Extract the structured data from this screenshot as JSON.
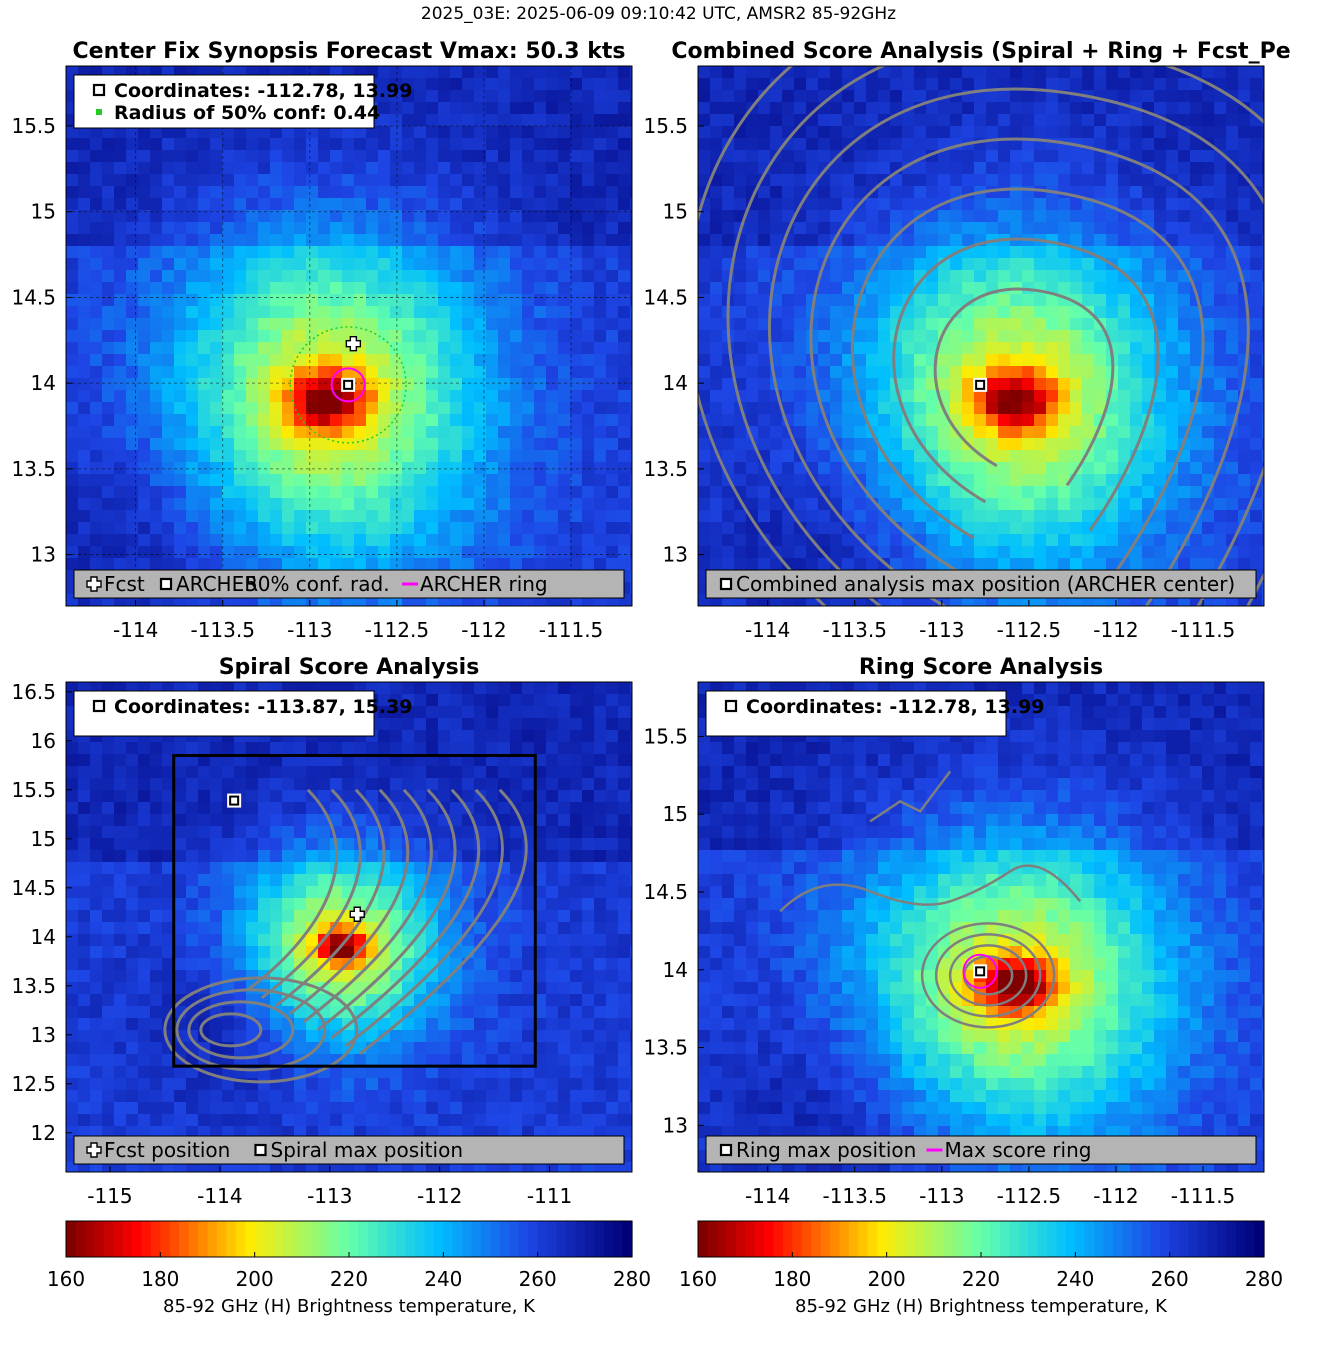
{
  "suptitle": "2025_03E: 2025-06-09 09:10:42 UTC, AMSR2 85-92GHz",
  "colors": {
    "cloud_cold": "#7a0000",
    "background_warm": "#1f36c6",
    "contour": "#7f7f7f",
    "ring": "#ff00ff",
    "conf_circle": "#22cc22",
    "box": "#000000",
    "legend_bg": "#b4b4b4"
  },
  "chart_data": [
    {
      "id": "panel-center-fix",
      "type": "heatmap",
      "title": "Center Fix Synopsis     Forecast Vmax: 50.3 kts",
      "xlim": [
        -114.4,
        -111.15
      ],
      "ylim": [
        12.7,
        15.85
      ],
      "xticks": [
        -114,
        -113.5,
        -113,
        -112.5,
        -112,
        -111.5
      ],
      "yticks": [
        13,
        13.5,
        14,
        14.5,
        15,
        15.5
      ],
      "grid": true,
      "storm": {
        "cx": -112.9,
        "cy": 13.9
      },
      "info_lines": [
        "Coordinates: -112.78, 13.99",
        "Radius of 50% conf: 0.44"
      ],
      "legend": [
        "Fcst",
        "ARCHER",
        "50% conf. rad.",
        "ARCHER ring"
      ],
      "fcst": {
        "x": -112.75,
        "y": 14.23
      },
      "archer": {
        "x": -112.78,
        "y": 13.99
      },
      "ring_radius": 0.1,
      "conf_radius": 0.44
    },
    {
      "id": "panel-combined",
      "type": "heatmap",
      "title": "Combined Score Analysis (Spiral + Ring + Fcst_Pe",
      "xlim": [
        -114.4,
        -111.15
      ],
      "ylim": [
        12.7,
        15.85
      ],
      "xticks": [
        -114,
        -113.5,
        -113,
        -112.5,
        -112,
        -111.5
      ],
      "yticks": [
        13,
        13.5,
        14,
        14.5,
        15,
        15.5
      ],
      "storm": {
        "cx": -112.58,
        "cy": 13.9
      },
      "legend": [
        "Combined analysis max position (ARCHER center)"
      ],
      "archer": {
        "x": -112.78,
        "y": 13.99
      }
    },
    {
      "id": "panel-spiral",
      "type": "heatmap",
      "title": "Spiral Score Analysis",
      "xlim": [
        -115.4,
        -110.25
      ],
      "ylim": [
        11.6,
        16.6
      ],
      "xticks": [
        -115,
        -114,
        -113,
        -112,
        -111
      ],
      "yticks": [
        12,
        12.5,
        13,
        13.5,
        14,
        14.5,
        15,
        15.5,
        16,
        16.5
      ],
      "storm": {
        "cx": -112.9,
        "cy": 13.9
      },
      "info_lines": [
        "Coordinates: -113.87, 15.39"
      ],
      "legend": [
        "Fcst position",
        "Spiral max position"
      ],
      "fcst": {
        "x": -112.75,
        "y": 14.23
      },
      "spiral_max": {
        "x": -113.87,
        "y": 15.39
      },
      "box": {
        "x0": -114.42,
        "x1": -111.13,
        "y0": 12.68,
        "y1": 15.85
      }
    },
    {
      "id": "panel-ring",
      "type": "heatmap",
      "title": "Ring Score Analysis",
      "xlim": [
        -114.4,
        -111.15
      ],
      "ylim": [
        12.7,
        15.85
      ],
      "xticks": [
        -114,
        -113.5,
        -113,
        -112.5,
        -112,
        -111.5
      ],
      "yticks": [
        13,
        13.5,
        14,
        14.5,
        15,
        15.5
      ],
      "storm": {
        "cx": -112.58,
        "cy": 13.9
      },
      "info_lines": [
        "Coordinates: -112.78, 13.99"
      ],
      "legend": [
        "Ring max position",
        "Max score ring"
      ],
      "archer": {
        "x": -112.78,
        "y": 13.99
      },
      "ring_radius": 0.1
    }
  ],
  "colorbar": {
    "ticks": [
      160,
      180,
      200,
      220,
      240,
      260,
      280
    ],
    "label": "85-92 GHz (H) Brightness temperature, K"
  }
}
